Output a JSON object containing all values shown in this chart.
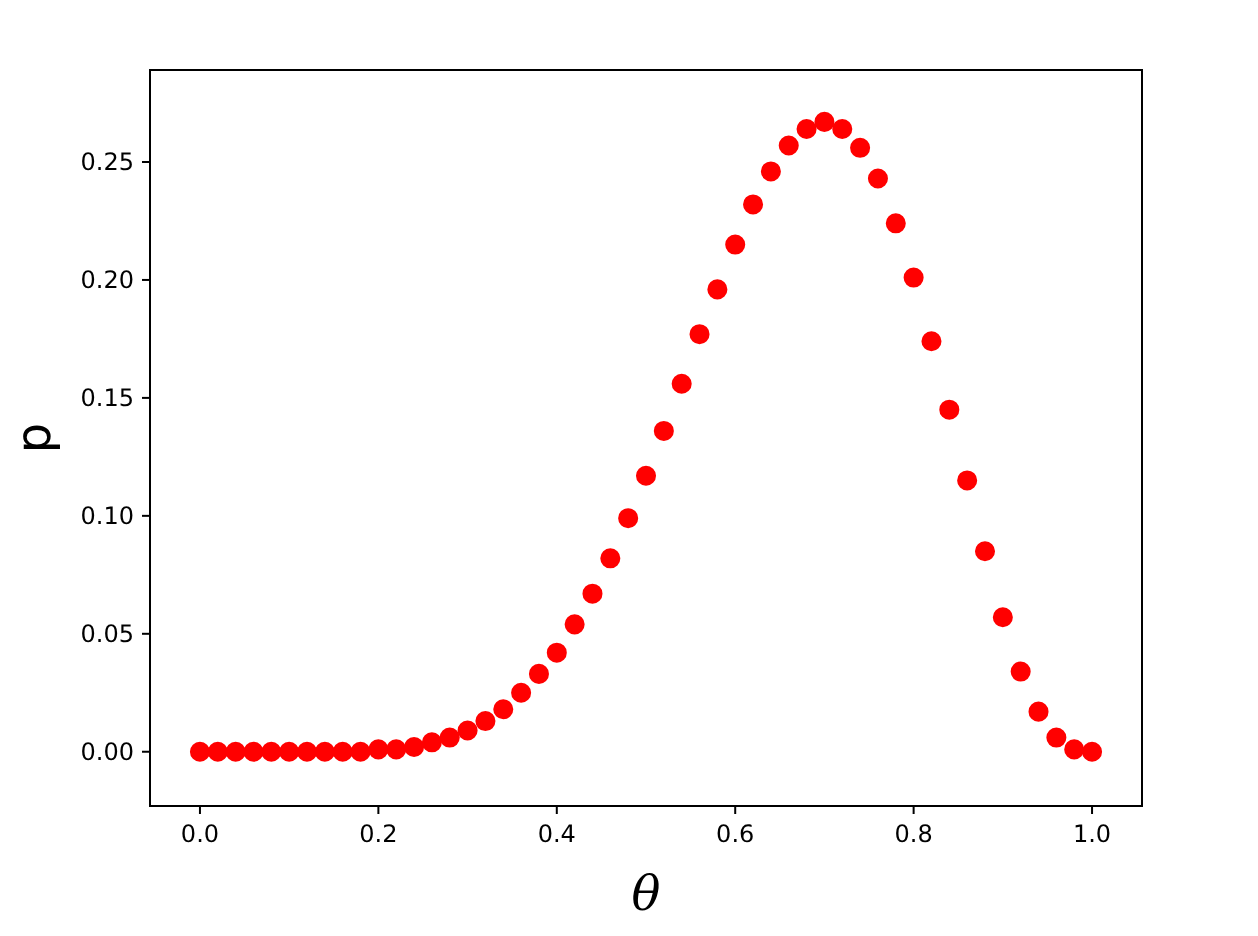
{
  "chart_data": {
    "type": "scatter",
    "xlabel": "θ",
    "ylabel": "p",
    "marker": "circle",
    "x": [
      0,
      0.02,
      0.04,
      0.06,
      0.08,
      0.1,
      0.12,
      0.14,
      0.16,
      0.18,
      0.2,
      0.22,
      0.24,
      0.26,
      0.28,
      0.3,
      0.32,
      0.34,
      0.36,
      0.38,
      0.4,
      0.42,
      0.44,
      0.46,
      0.48,
      0.5,
      0.52,
      0.54,
      0.56,
      0.58,
      0.6,
      0.62,
      0.64,
      0.66,
      0.68,
      0.7,
      0.72,
      0.74,
      0.76,
      0.78,
      0.8,
      0.82,
      0.84,
      0.86,
      0.88,
      0.9,
      0.92,
      0.94,
      0.96,
      0.98,
      1.0
    ],
    "series": [
      {
        "color": "#ff0000",
        "values": [
          0,
          0,
          0,
          0,
          0,
          0,
          0,
          0,
          0,
          0,
          0.001,
          0.001,
          0.002,
          0.004,
          0.006,
          0.009,
          0.013,
          0.018,
          0.025,
          0.033,
          0.042,
          0.054,
          0.067,
          0.082,
          0.099,
          0.117,
          0.136,
          0.156,
          0.177,
          0.196,
          0.215,
          0.232,
          0.246,
          0.257,
          0.264,
          0.267,
          0.264,
          0.256,
          0.243,
          0.224,
          0.201,
          0.174,
          0.145,
          0.115,
          0.085,
          0.057,
          0.034,
          0.017,
          0.006,
          0.001,
          0
        ]
      }
    ],
    "xlim": [
      -0.056,
      1.056
    ],
    "ylim": [
      -0.023,
      0.289
    ],
    "xticks": [
      {
        "value": 0,
        "label": "0.0"
      },
      {
        "value": 0.2,
        "label": "0.2"
      },
      {
        "value": 0.4,
        "label": "0.4"
      },
      {
        "value": 0.6,
        "label": "0.6"
      },
      {
        "value": 0.8,
        "label": "0.8"
      },
      {
        "value": 1,
        "label": "1.0"
      }
    ],
    "yticks": [
      {
        "value": 0,
        "label": "0.00"
      },
      {
        "value": 0.05,
        "label": "0.05"
      },
      {
        "value": 0.1,
        "label": "0.10"
      },
      {
        "value": 0.15,
        "label": "0.15"
      },
      {
        "value": 0.2,
        "label": "0.20"
      },
      {
        "value": 0.25,
        "label": "0.25"
      }
    ]
  }
}
